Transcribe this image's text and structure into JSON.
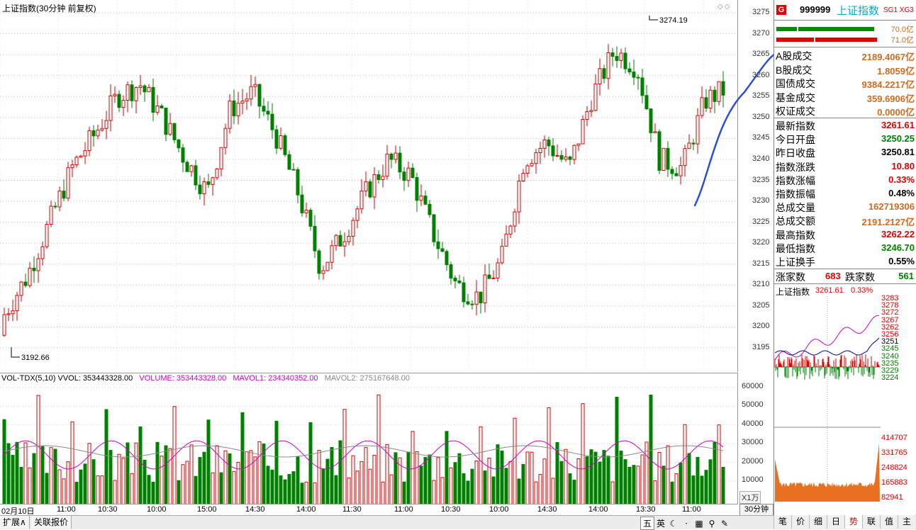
{
  "kline": {
    "title": "上证指数(30分钟 前复权)",
    "icons": "◇◇",
    "high_label": "3274.19",
    "low_label": "3192.66",
    "price_ticks": [
      "3275",
      "3270",
      "3265",
      "3260",
      "3255",
      "3250",
      "3245",
      "3240",
      "3235",
      "3230",
      "3225",
      "3220",
      "3215",
      "3210",
      "3205",
      "3200",
      "3195"
    ]
  },
  "volume": {
    "name": "VOL-TDX(5,10)",
    "vvol": "VVOL: 353443328.00",
    "volume": "VOLUME: 353443328.00",
    "mavol1": "MAVOL1: 234340352.00",
    "mavol2": "MAVOL2: 275167648.00",
    "ticks": [
      "60000",
      "50000",
      "40000",
      "30000",
      "20000",
      "10000"
    ],
    "unit": "X1万"
  },
  "time_axis": [
    "02月10日",
    "11:00",
    "10:30",
    "10:00",
    "15:00",
    "14:30",
    "14:00",
    "11:30",
    "11:00",
    "10:30",
    "10:00",
    "14:30",
    "14:00",
    "13:30",
    "11:00"
  ],
  "period": "30分钟",
  "bottom_tabs": [
    "扩展∧",
    "关联报价"
  ],
  "ime": [
    "五",
    "英",
    "☾",
    "⋅",
    "▦",
    "⚲",
    "✎"
  ],
  "right_tabs": [
    "笔",
    "价",
    "细",
    "日",
    "势",
    "联",
    "值",
    "主"
  ],
  "right_panel": {
    "badge": "G",
    "code": "999999",
    "name": "上证指数",
    "tags": "SG1 XG3",
    "bar1": "70.0亿",
    "bar2": "71.0亿",
    "trade_rows": [
      {
        "label": "A股成交",
        "value": "2189.4067亿"
      },
      {
        "label": "B股成交",
        "value": "1.8059亿"
      },
      {
        "label": "国债成交",
        "value": "9384.2217亿"
      },
      {
        "label": "基金成交",
        "value": "359.6906亿"
      },
      {
        "label": "权证成交",
        "value": "0.0000亿"
      }
    ],
    "quote_rows": [
      {
        "label": "最新指数",
        "value": "3261.61",
        "color": "#e00000"
      },
      {
        "label": "今日开盘",
        "value": "3250.25",
        "color": "#008000"
      },
      {
        "label": "昨日收盘",
        "value": "3250.81",
        "color": "#000000"
      },
      {
        "label": "指数涨跌",
        "value": "10.80",
        "color": "#e00000"
      },
      {
        "label": "指数涨幅",
        "value": "0.33%",
        "color": "#e00000"
      },
      {
        "label": "指数振幅",
        "value": "0.48%",
        "color": "#000000"
      },
      {
        "label": "总成交量",
        "value": "162719306",
        "color": "#d2691e"
      },
      {
        "label": "总成交额",
        "value": "2191.2127亿",
        "color": "#d2691e"
      },
      {
        "label": "最高指数",
        "value": "3262.22",
        "color": "#e00000"
      },
      {
        "label": "最低指数",
        "value": "3246.70",
        "color": "#008000"
      },
      {
        "label": "上证换手",
        "value": "0.55%",
        "color": "#000000"
      }
    ],
    "breadth": {
      "up_label": "涨家数",
      "up": "683",
      "down_label": "跌家数",
      "down": "561"
    },
    "mini": {
      "title": "上证指数",
      "price": "3261.61",
      "pct": "0.33%",
      "price_ticks": [
        {
          "v": "3283",
          "c": "#e00000"
        },
        {
          "v": "3278",
          "c": "#e00000"
        },
        {
          "v": "3272",
          "c": "#e00000"
        },
        {
          "v": "3267",
          "c": "#e00000"
        },
        {
          "v": "3262",
          "c": "#e00000"
        },
        {
          "v": "3256",
          "c": "#e00000"
        },
        {
          "v": "3251",
          "c": "#000000"
        },
        {
          "v": "3245",
          "c": "#008000"
        },
        {
          "v": "3240",
          "c": "#008000"
        },
        {
          "v": "3235",
          "c": "#008000"
        },
        {
          "v": "3229",
          "c": "#008000"
        },
        {
          "v": "3224",
          "c": "#008000"
        }
      ],
      "vol_ticks": [
        "414707",
        "331765",
        "248824",
        "165883",
        "82941"
      ]
    }
  }
}
